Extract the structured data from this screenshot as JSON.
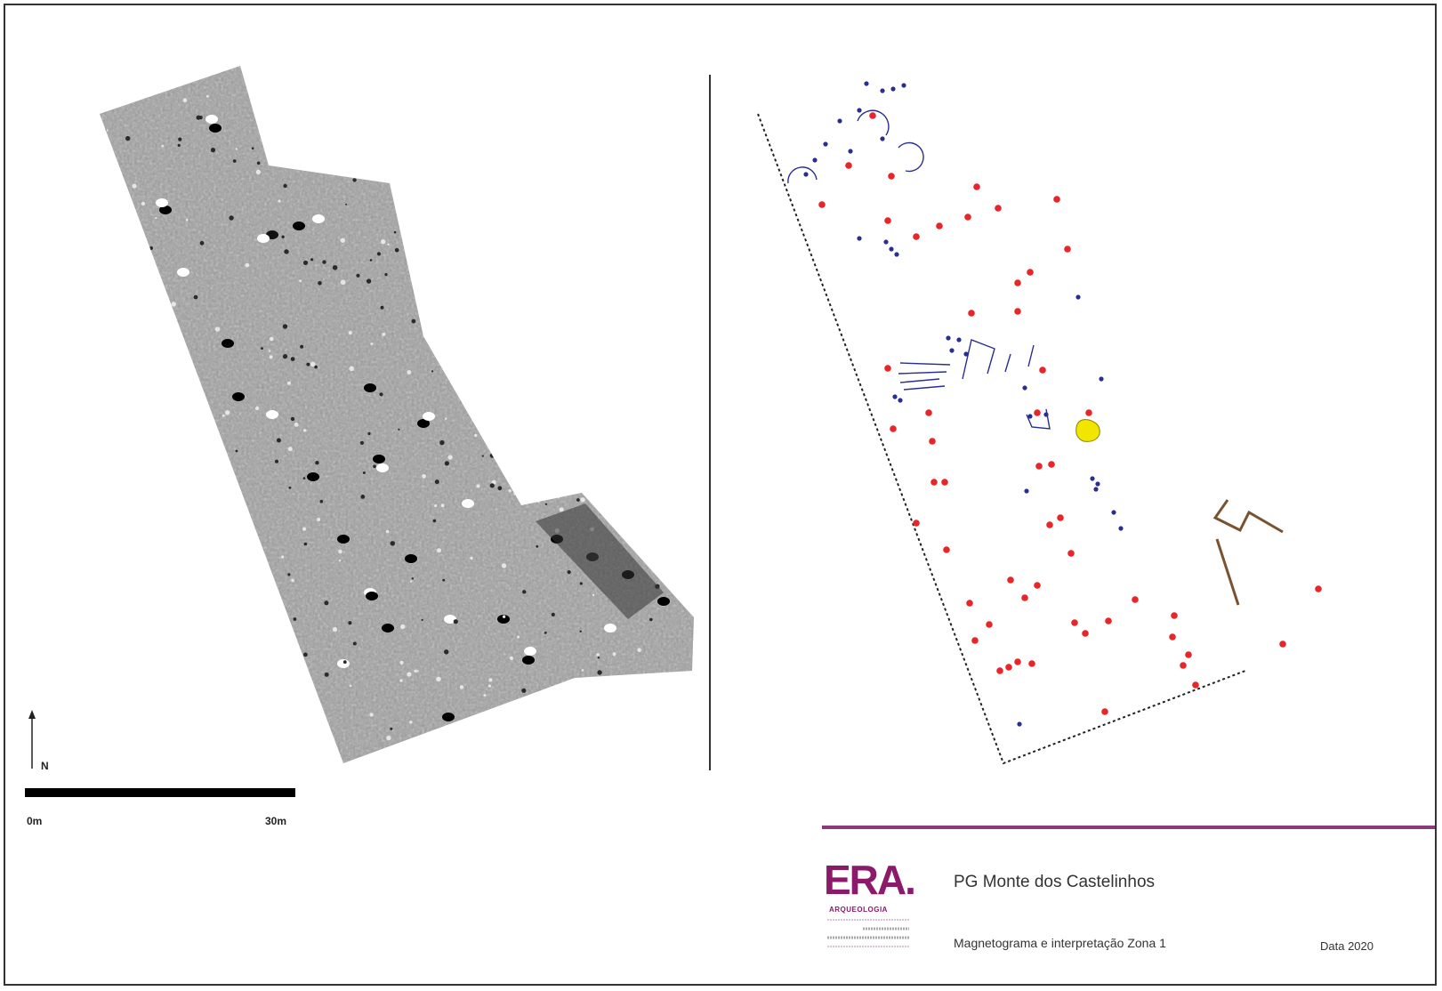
{
  "map": {
    "north_label": "N",
    "scale": {
      "start_label": "0m",
      "end_label": "30m"
    }
  },
  "legend_colors": {
    "red_points": "#e8262a",
    "blue_points": "#2a2f8f",
    "yellow_feature": "#f2e600",
    "brown_lines": "#7a5230",
    "accent_rule": "#8b3a7a"
  },
  "footer": {
    "logo_text": "ERA.",
    "logo_subtext": "ARQUEOLOGIA",
    "project_title": "PG Monte dos Castelinhos",
    "subtitle": "Magnetograma e interpretação Zona 1",
    "date": "Data 2020"
  }
}
